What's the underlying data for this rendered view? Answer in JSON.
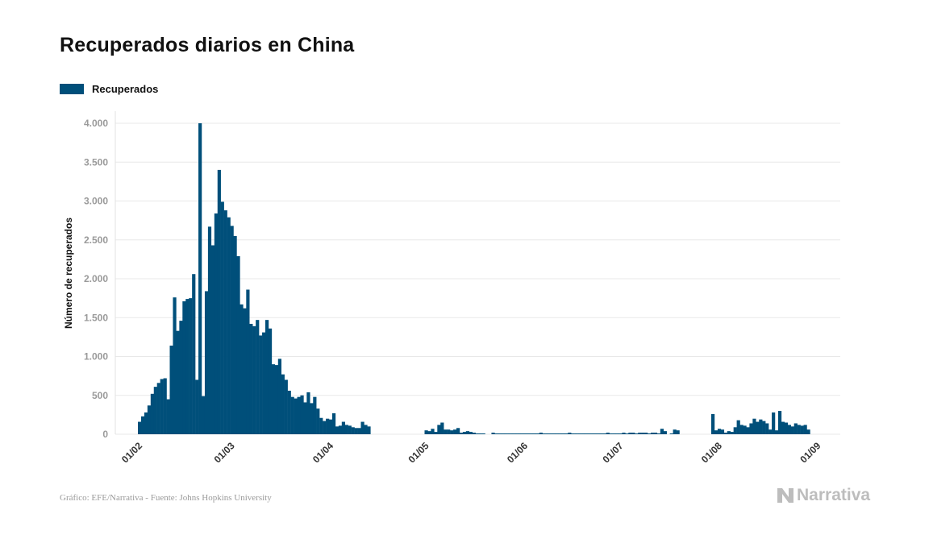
{
  "chart_data": {
    "type": "bar",
    "title": "Recuperados diarios en China",
    "ylabel": "Número de recuperados",
    "xlabel": "",
    "ylim": [
      0,
      4000
    ],
    "y_ticks": [
      0,
      500,
      1000,
      1500,
      2000,
      2500,
      3000,
      3500,
      4000
    ],
    "y_tick_labels": [
      "0",
      "500",
      "1.000",
      "1.500",
      "2.000",
      "2.500",
      "3.000",
      "3.500",
      "4.000"
    ],
    "x_tick_labels": [
      "01/02",
      "01/03",
      "01/04",
      "01/05",
      "01/06",
      "01/07",
      "01/08",
      "01/09"
    ],
    "x_tick_dates": [
      "2020-02-01",
      "2020-03-01",
      "2020-04-01",
      "2020-05-01",
      "2020-06-01",
      "2020-07-01",
      "2020-08-01",
      "2020-09-01"
    ],
    "grid": true,
    "legend_position": "top-left",
    "series": [
      {
        "name": "Recuperados",
        "color": "#004f7a",
        "start_date": "2020-02-01",
        "values": [
          160,
          230,
          280,
          370,
          520,
          610,
          660,
          710,
          720,
          450,
          1140,
          1760,
          1330,
          1460,
          1710,
          1740,
          1750,
          2060,
          700,
          4000,
          490,
          1840,
          2670,
          2430,
          2840,
          3400,
          2990,
          2880,
          2790,
          2680,
          2550,
          2290,
          1670,
          1620,
          1860,
          1420,
          1390,
          1470,
          1270,
          1310,
          1470,
          1360,
          900,
          890,
          970,
          770,
          700,
          560,
          480,
          460,
          480,
          500,
          410,
          540,
          400,
          480,
          330,
          210,
          170,
          200,
          190,
          270,
          100,
          110,
          160,
          120,
          110,
          90,
          80,
          80,
          160,
          120,
          100,
          0,
          0,
          0,
          0,
          0,
          0,
          0,
          0,
          0,
          0,
          0,
          0,
          0,
          0,
          0,
          0,
          0,
          50,
          40,
          70,
          30,
          120,
          150,
          60,
          60,
          50,
          60,
          80,
          20,
          30,
          40,
          30,
          20,
          10,
          10,
          10,
          0,
          0,
          20,
          10,
          10,
          10,
          10,
          10,
          10,
          10,
          10,
          10,
          10,
          10,
          10,
          10,
          10,
          20,
          10,
          10,
          10,
          10,
          10,
          10,
          10,
          10,
          20,
          10,
          10,
          10,
          10,
          10,
          10,
          10,
          10,
          10,
          10,
          10,
          20,
          10,
          10,
          10,
          10,
          20,
          10,
          20,
          20,
          10,
          20,
          20,
          20,
          10,
          20,
          20,
          10,
          70,
          40,
          0,
          10,
          60,
          50,
          0,
          0,
          0,
          0,
          0,
          0,
          0,
          0,
          0,
          0,
          260,
          50,
          70,
          60,
          20,
          40,
          30,
          90,
          180,
          120,
          110,
          90,
          140,
          200,
          160,
          190,
          170,
          140,
          60,
          280,
          50,
          300,
          160,
          150,
          120,
          100,
          140,
          120,
          110,
          120,
          60
        ]
      }
    ]
  },
  "legend": {
    "label": "Recuperados"
  },
  "source": "Gráfico: EFE/Narrativa - Fuente: Johns Hopkins University",
  "logo": {
    "text": "Narrativa",
    "icon": "narrativa-logo-icon"
  }
}
